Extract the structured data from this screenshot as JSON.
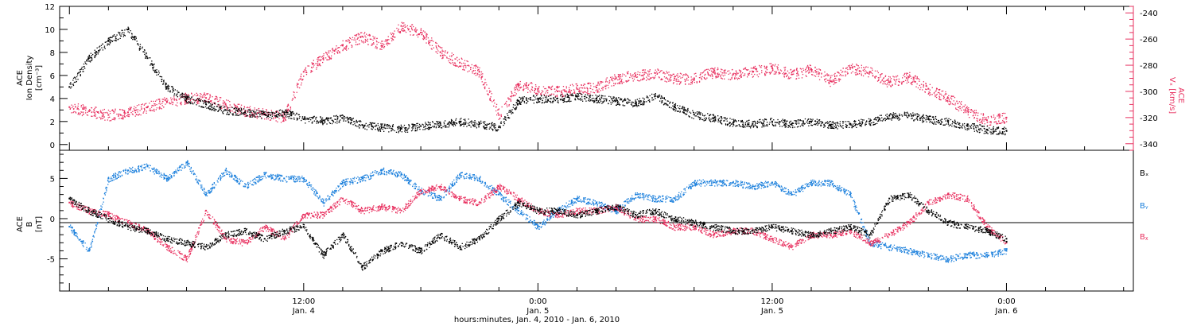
{
  "colors": {
    "black": "#000000",
    "pink": "#e8305f",
    "blue": "#1a7fdc"
  },
  "chart_data": [
    {
      "type": "scatter",
      "panel": "top",
      "ylabel_lines": [
        "ACE",
        "Ion Density",
        "[cm⁻³]"
      ],
      "ylim": [
        -0.5,
        12
      ],
      "yticks": [
        0,
        2,
        4,
        6,
        8,
        10,
        12
      ],
      "right_ylabel_lines": [
        "ACE",
        "Vₓ [km/s]"
      ],
      "right_ylim": [
        -345,
        -235
      ],
      "right_yticks": [
        -340,
        -320,
        -300,
        -280,
        -260,
        -240
      ],
      "series": [
        {
          "color": "black",
          "axis": "left",
          "x_hours": [
            0,
            1,
            2,
            3,
            4,
            5,
            6,
            7,
            8,
            9,
            10,
            11,
            12,
            13,
            14,
            15,
            16,
            17,
            18,
            19,
            20,
            21,
            22,
            23,
            24,
            25,
            26,
            27,
            28,
            29,
            30,
            31,
            32,
            33,
            34,
            35,
            36,
            37,
            38,
            39,
            40,
            41,
            42,
            43,
            44,
            45,
            46,
            47,
            48
          ],
          "values": [
            5.0,
            7.5,
            9.0,
            10.0,
            7.5,
            5.0,
            4.0,
            3.5,
            3.0,
            2.8,
            2.6,
            2.8,
            2.2,
            2.1,
            2.3,
            1.7,
            1.5,
            1.4,
            1.6,
            1.8,
            2.0,
            1.8,
            1.5,
            3.8,
            4.0,
            4.0,
            4.2,
            4.0,
            3.8,
            3.6,
            4.2,
            3.3,
            2.6,
            2.3,
            1.9,
            1.8,
            2.0,
            1.8,
            2.0,
            1.7,
            1.8,
            2.0,
            2.5,
            2.5,
            2.2,
            2.0,
            1.6,
            1.3,
            1.2
          ]
        },
        {
          "color": "pink",
          "axis": "right",
          "x_hours": [
            0,
            1,
            2,
            3,
            4,
            5,
            6,
            7,
            8,
            9,
            10,
            11,
            12,
            13,
            14,
            15,
            16,
            17,
            18,
            19,
            20,
            21,
            22,
            23,
            24,
            25,
            26,
            27,
            28,
            29,
            30,
            31,
            32,
            33,
            34,
            35,
            36,
            37,
            38,
            39,
            40,
            41,
            42,
            43,
            44,
            45,
            46,
            47,
            48
          ],
          "values": [
            -312,
            -315,
            -318,
            -316,
            -312,
            -308,
            -305,
            -305,
            -310,
            -315,
            -317,
            -320,
            -285,
            -275,
            -265,
            -258,
            -265,
            -250,
            -255,
            -270,
            -278,
            -285,
            -318,
            -295,
            -298,
            -300,
            -298,
            -297,
            -290,
            -288,
            -286,
            -290,
            -290,
            -285,
            -287,
            -285,
            -282,
            -287,
            -283,
            -292,
            -282,
            -285,
            -293,
            -289,
            -298,
            -305,
            -315,
            -322,
            -320
          ]
        }
      ]
    },
    {
      "type": "scatter",
      "panel": "bottom",
      "ylabel_lines": [
        "ACE",
        "B",
        "[nT]"
      ],
      "ylim": [
        -9,
        8.5
      ],
      "yticks": [
        -5,
        0,
        5
      ],
      "legend": [
        "Bₓ",
        "Bᵧ",
        "Bᵪ"
      ],
      "series": [
        {
          "color": "black",
          "label": "Bₓ",
          "x_hours": [
            0,
            1,
            2,
            3,
            4,
            5,
            6,
            7,
            8,
            9,
            10,
            11,
            12,
            13,
            14,
            15,
            16,
            17,
            18,
            19,
            20,
            21,
            22,
            23,
            24,
            25,
            26,
            27,
            28,
            29,
            30,
            31,
            32,
            33,
            34,
            35,
            36,
            37,
            38,
            39,
            40,
            41,
            42,
            43,
            44,
            45,
            46,
            47,
            48
          ],
          "values": [
            2.5,
            1.0,
            0.0,
            -1.0,
            -1.5,
            -2.5,
            -3.0,
            -3.5,
            -2.0,
            -1.5,
            -2.5,
            -1.5,
            -1.0,
            -4.5,
            -2.0,
            -6.0,
            -4.0,
            -3.0,
            -4.0,
            -2.0,
            -3.5,
            -2.5,
            0.0,
            2.0,
            1.0,
            1.0,
            0.5,
            1.0,
            1.5,
            0.5,
            1.0,
            0.0,
            -0.5,
            -1.0,
            -1.5,
            -1.5,
            -1.0,
            -1.5,
            -2.0,
            -1.5,
            -1.0,
            -2.0,
            2.5,
            3.0,
            1.0,
            -0.5,
            -1.0,
            -1.5,
            -2.5
          ]
        },
        {
          "color": "blue",
          "label": "Bᵧ",
          "x_hours": [
            0,
            1,
            2,
            3,
            4,
            5,
            6,
            7,
            8,
            9,
            10,
            11,
            12,
            13,
            14,
            15,
            16,
            17,
            18,
            19,
            20,
            21,
            22,
            23,
            24,
            25,
            26,
            27,
            28,
            29,
            30,
            31,
            32,
            33,
            34,
            35,
            36,
            37,
            38,
            39,
            40,
            41,
            42,
            43,
            44,
            45,
            46,
            47,
            48
          ],
          "values": [
            -1.0,
            -4.0,
            5.0,
            6.0,
            6.5,
            5.0,
            7.0,
            3.0,
            6.0,
            4.0,
            5.5,
            5.0,
            5.0,
            2.0,
            4.5,
            5.0,
            6.0,
            5.5,
            3.5,
            2.5,
            5.5,
            5.0,
            3.0,
            1.0,
            -1.0,
            1.0,
            2.5,
            2.0,
            1.0,
            3.0,
            2.5,
            2.5,
            4.5,
            4.5,
            4.5,
            4.0,
            4.5,
            3.0,
            4.5,
            4.5,
            3.0,
            -3.0,
            -3.5,
            -4.0,
            -4.5,
            -5.0,
            -4.5,
            -4.5,
            -4.0
          ]
        },
        {
          "color": "pink",
          "label": "Bᵪ",
          "x_hours": [
            0,
            1,
            2,
            3,
            4,
            5,
            6,
            7,
            8,
            9,
            10,
            11,
            12,
            13,
            14,
            15,
            16,
            17,
            18,
            19,
            20,
            21,
            22,
            23,
            24,
            25,
            26,
            27,
            28,
            29,
            30,
            31,
            32,
            33,
            34,
            35,
            36,
            37,
            38,
            39,
            40,
            41,
            42,
            43,
            44,
            45,
            46,
            47,
            48
          ],
          "values": [
            2.0,
            1.0,
            0.5,
            -0.5,
            -1.5,
            -3.5,
            -5.0,
            1.0,
            -2.5,
            -3.0,
            -1.0,
            -2.5,
            0.5,
            0.5,
            2.5,
            1.0,
            1.5,
            1.0,
            3.5,
            4.0,
            2.5,
            2.0,
            4.0,
            2.5,
            1.0,
            0.5,
            1.0,
            1.0,
            1.5,
            0.0,
            0.0,
            -1.0,
            -1.0,
            -2.0,
            -1.5,
            -1.5,
            -2.5,
            -3.5,
            -2.0,
            -2.0,
            -1.5,
            -3.0,
            -2.0,
            -0.5,
            2.0,
            3.0,
            2.5,
            -1.0,
            -3.0
          ]
        }
      ]
    }
  ],
  "time_axis": {
    "xlim_hours": [
      -0.5,
      54.5
    ],
    "major_ticks": [
      {
        "hours": 12,
        "line1": "12:00",
        "line2": "Jan. 4"
      },
      {
        "hours": 24,
        "line1": "0:00",
        "line2": "Jan. 5"
      },
      {
        "hours": 36,
        "line1": "12:00",
        "line2": "Jan. 5"
      },
      {
        "hours": 48,
        "line1": "0:00",
        "line2": "Jan. 6"
      }
    ],
    "title": "hours:minutes, Jan.  4, 2010 - Jan.  6, 2010"
  }
}
